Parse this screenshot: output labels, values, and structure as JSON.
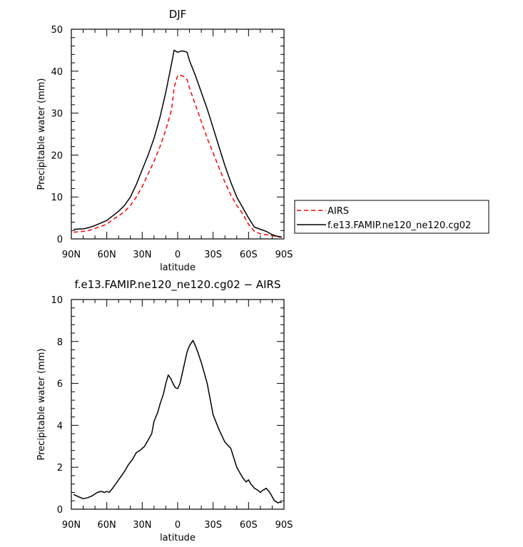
{
  "chart_data": [
    {
      "type": "line",
      "title": "DJF",
      "xlabel": "latitude",
      "ylabel": "Precipitable water (mm)",
      "x_unit_note": "latitude in degrees, north positive",
      "xlim": [
        90,
        -90
      ],
      "ylim": [
        0,
        50
      ],
      "xticks": [
        90,
        60,
        30,
        0,
        -30,
        -60,
        -90
      ],
      "xtick_labels": [
        "90N",
        "60N",
        "30N",
        "0",
        "30S",
        "60S",
        "90S"
      ],
      "yticks": [
        0,
        10,
        20,
        30,
        40,
        50
      ],
      "ytick_labels": [
        "0",
        "10",
        "20",
        "30",
        "40",
        "50"
      ],
      "legend_position": "right",
      "series": [
        {
          "name": "AIRS",
          "color": "#ff0000",
          "dash": "dashed",
          "x": [
            88,
            80,
            75,
            70,
            65,
            60,
            55,
            50,
            45,
            40,
            35,
            30,
            25,
            20,
            15,
            10,
            5,
            3,
            0,
            -3,
            -5,
            -8,
            -10,
            -15,
            -20,
            -25,
            -30,
            -35,
            -40,
            -45,
            -50,
            -55,
            -60,
            -65,
            -70,
            -75,
            -80,
            -85,
            -88
          ],
          "y": [
            1.6,
            1.8,
            2.0,
            2.5,
            3.0,
            3.5,
            4.6,
            5.5,
            6.5,
            8.0,
            10.0,
            12.5,
            15.5,
            18.5,
            22.0,
            26.0,
            31.0,
            36.0,
            39.0,
            39.0,
            38.8,
            38.0,
            36.0,
            32.0,
            28.0,
            24.0,
            20.5,
            17.0,
            13.5,
            10.5,
            8.0,
            6.0,
            3.5,
            1.8,
            1.2,
            1.0,
            0.8,
            0.5,
            0.4
          ]
        },
        {
          "name": "f.e13.FAMIP.ne120_ne120.cg02",
          "color": "#000000",
          "dash": "solid",
          "x": [
            88,
            80,
            75,
            70,
            65,
            60,
            55,
            50,
            45,
            40,
            35,
            30,
            25,
            20,
            15,
            10,
            5,
            3,
            0,
            -3,
            -5,
            -8,
            -10,
            -15,
            -20,
            -25,
            -30,
            -35,
            -40,
            -45,
            -50,
            -55,
            -60,
            -65,
            -70,
            -75,
            -80,
            -85,
            -88
          ],
          "y": [
            2.3,
            2.4,
            2.7,
            3.2,
            3.8,
            4.4,
            5.5,
            6.6,
            8.0,
            10.0,
            13.0,
            16.5,
            20.0,
            24.0,
            29.0,
            35.0,
            42.0,
            45.0,
            44.5,
            44.8,
            44.8,
            44.5,
            42.5,
            39.0,
            35.0,
            31.0,
            26.5,
            22.0,
            17.5,
            13.5,
            10.0,
            7.5,
            5.0,
            2.8,
            2.3,
            1.8,
            1.0,
            0.6,
            0.5
          ]
        }
      ]
    },
    {
      "type": "line",
      "title": "f.e13.FAMIP.ne120_ne120.cg02 − AIRS",
      "xlabel": "latitude",
      "ylabel": "Precipitable water (mm)",
      "x_unit_note": "latitude in degrees, north positive",
      "xlim": [
        90,
        -90
      ],
      "ylim": [
        0,
        10
      ],
      "xticks": [
        90,
        60,
        30,
        0,
        -30,
        -60,
        -90
      ],
      "xtick_labels": [
        "90N",
        "60N",
        "30N",
        "0",
        "30S",
        "60S",
        "90S"
      ],
      "yticks": [
        0,
        2,
        4,
        6,
        8,
        10
      ],
      "ytick_labels": [
        "0",
        "2",
        "4",
        "6",
        "8",
        "10"
      ],
      "series": [
        {
          "color": "#000000",
          "dash": "solid",
          "x": [
            88,
            84,
            80,
            76,
            72,
            68,
            65,
            62,
            60,
            58,
            55,
            50,
            45,
            42,
            38,
            35,
            32,
            28,
            25,
            22,
            20,
            17,
            15,
            12,
            10,
            8,
            6,
            4,
            2,
            0,
            -2,
            -4,
            -6,
            -8,
            -10,
            -13,
            -15,
            -17,
            -20,
            -25,
            -30,
            -35,
            -40,
            -45,
            -50,
            -55,
            -58,
            -60,
            -62,
            -65,
            -68,
            -70,
            -72,
            -75,
            -78,
            -80,
            -82,
            -85,
            -87,
            -88
          ],
          "y": [
            0.7,
            0.6,
            0.5,
            0.55,
            0.65,
            0.8,
            0.85,
            0.8,
            0.85,
            0.8,
            1.0,
            1.4,
            1.8,
            2.1,
            2.4,
            2.7,
            2.8,
            3.0,
            3.3,
            3.6,
            4.2,
            4.6,
            5.0,
            5.5,
            6.0,
            6.4,
            6.25,
            6.0,
            5.8,
            5.75,
            6.0,
            6.5,
            7.0,
            7.5,
            7.8,
            8.05,
            7.8,
            7.5,
            7.0,
            6.0,
            4.5,
            3.8,
            3.2,
            2.9,
            2.0,
            1.5,
            1.3,
            1.4,
            1.2,
            1.0,
            0.9,
            0.8,
            0.9,
            1.0,
            0.8,
            0.6,
            0.4,
            0.3,
            0.35,
            0.3
          ]
        }
      ]
    }
  ]
}
